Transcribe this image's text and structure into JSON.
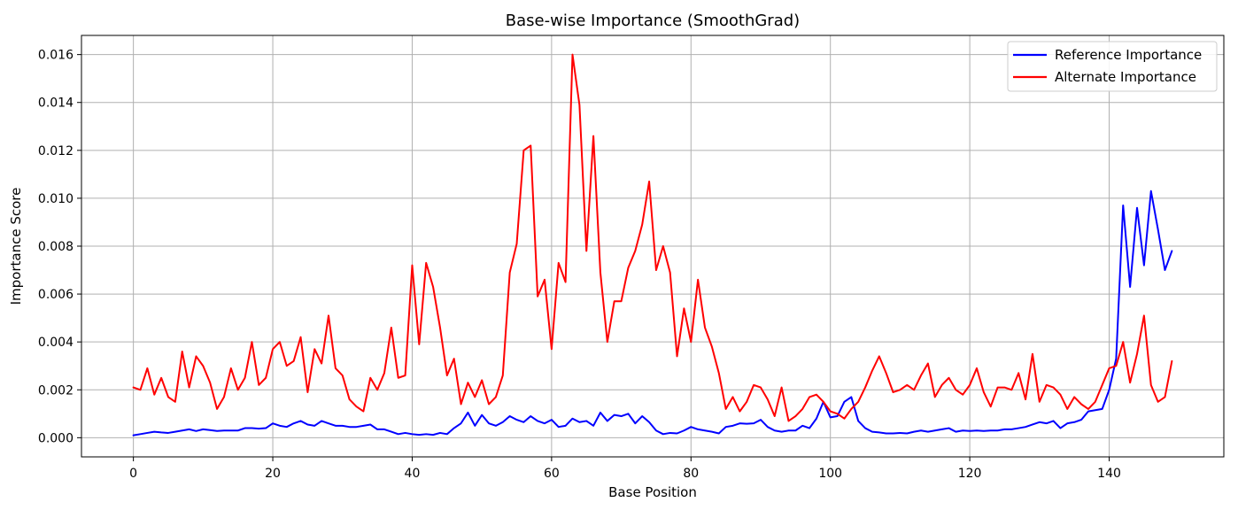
{
  "chart_data": {
    "type": "line",
    "title": "Base-wise Importance (SmoothGrad)",
    "xlabel": "Base Position",
    "ylabel": "Importance Score",
    "xlim": [
      -7.45,
      156.45
    ],
    "ylim": [
      -0.0008,
      0.0168
    ],
    "xticks": [
      0,
      20,
      40,
      60,
      80,
      100,
      120,
      140
    ],
    "yticks": [
      0.0,
      0.002,
      0.004,
      0.006,
      0.008,
      0.01,
      0.012,
      0.014,
      0.016
    ],
    "ytick_labels": [
      "0.000",
      "0.002",
      "0.004",
      "0.006",
      "0.008",
      "0.010",
      "0.012",
      "0.014",
      "0.016"
    ],
    "grid": true,
    "legend_position": "top-right",
    "series": [
      {
        "name": "Reference Importance",
        "color": "#0000ff",
        "values": [
          0.0001,
          0.00015,
          0.0002,
          0.00025,
          0.00022,
          0.0002,
          0.00025,
          0.0003,
          0.00035,
          0.00028,
          0.00035,
          0.00032,
          0.00028,
          0.0003,
          0.0003,
          0.0003,
          0.0004,
          0.0004,
          0.00038,
          0.0004,
          0.0006,
          0.0005,
          0.00045,
          0.0006,
          0.0007,
          0.00055,
          0.0005,
          0.0007,
          0.0006,
          0.0005,
          0.0005,
          0.00045,
          0.00045,
          0.0005,
          0.00055,
          0.00035,
          0.00035,
          0.00025,
          0.00015,
          0.0002,
          0.00015,
          0.00012,
          0.00015,
          0.00012,
          0.0002,
          0.00015,
          0.0004,
          0.0006,
          0.00105,
          0.0005,
          0.00095,
          0.0006,
          0.0005,
          0.00065,
          0.0009,
          0.00075,
          0.00065,
          0.0009,
          0.0007,
          0.0006,
          0.00075,
          0.00045,
          0.0005,
          0.0008,
          0.00065,
          0.0007,
          0.0005,
          0.00105,
          0.0007,
          0.00095,
          0.0009,
          0.001,
          0.0006,
          0.0009,
          0.00065,
          0.0003,
          0.00015,
          0.0002,
          0.00018,
          0.0003,
          0.00045,
          0.00035,
          0.0003,
          0.00025,
          0.00018,
          0.00045,
          0.0005,
          0.0006,
          0.00058,
          0.0006,
          0.00075,
          0.00045,
          0.0003,
          0.00025,
          0.0003,
          0.0003,
          0.0005,
          0.0004,
          0.0008,
          0.0015,
          0.00085,
          0.0009,
          0.0015,
          0.0017,
          0.0007,
          0.0004,
          0.00025,
          0.00022,
          0.00018,
          0.00018,
          0.0002,
          0.00018,
          0.00025,
          0.0003,
          0.00025,
          0.0003,
          0.00035,
          0.0004,
          0.00025,
          0.0003,
          0.00028,
          0.0003,
          0.00028,
          0.0003,
          0.0003,
          0.00035,
          0.00035,
          0.0004,
          0.00045,
          0.00055,
          0.00065,
          0.0006,
          0.0007,
          0.0004,
          0.0006,
          0.00065,
          0.00075,
          0.0011,
          0.00115,
          0.0012,
          0.002,
          0.0033,
          0.0097,
          0.0063,
          0.0096,
          0.0072,
          0.0103,
          0.0087,
          0.007,
          0.0078
        ]
      },
      {
        "name": "Alternate Importance",
        "color": "#ff0000",
        "values": [
          0.0021,
          0.002,
          0.0029,
          0.0018,
          0.0025,
          0.0017,
          0.0015,
          0.0036,
          0.0021,
          0.0034,
          0.003,
          0.0023,
          0.0012,
          0.0017,
          0.0029,
          0.002,
          0.0025,
          0.004,
          0.0022,
          0.0025,
          0.0037,
          0.004,
          0.003,
          0.0032,
          0.0042,
          0.0019,
          0.0037,
          0.0031,
          0.0051,
          0.0029,
          0.0026,
          0.0016,
          0.0013,
          0.0011,
          0.0025,
          0.002,
          0.0027,
          0.0046,
          0.0025,
          0.0026,
          0.0072,
          0.0039,
          0.0073,
          0.0063,
          0.0046,
          0.0026,
          0.0033,
          0.0014,
          0.0023,
          0.0017,
          0.0024,
          0.0014,
          0.0017,
          0.0026,
          0.0069,
          0.0081,
          0.012,
          0.0122,
          0.0059,
          0.0066,
          0.0037,
          0.0073,
          0.0065,
          0.016,
          0.0139,
          0.0078,
          0.0126,
          0.0069,
          0.004,
          0.0057,
          0.0057,
          0.0071,
          0.0078,
          0.0089,
          0.0107,
          0.007,
          0.008,
          0.0069,
          0.0034,
          0.0054,
          0.004,
          0.0066,
          0.0046,
          0.0038,
          0.0027,
          0.0012,
          0.0017,
          0.0011,
          0.0015,
          0.0022,
          0.0021,
          0.0016,
          0.0009,
          0.0021,
          0.0007,
          0.0009,
          0.0012,
          0.0017,
          0.0018,
          0.0015,
          0.0011,
          0.001,
          0.0008,
          0.0012,
          0.0015,
          0.0021,
          0.0028,
          0.0034,
          0.0027,
          0.0019,
          0.002,
          0.0022,
          0.002,
          0.0026,
          0.0031,
          0.0017,
          0.0022,
          0.0025,
          0.002,
          0.0018,
          0.0022,
          0.0029,
          0.0019,
          0.0013,
          0.0021,
          0.0021,
          0.002,
          0.0027,
          0.0016,
          0.0035,
          0.0015,
          0.0022,
          0.0021,
          0.0018,
          0.0012,
          0.0017,
          0.0014,
          0.0012,
          0.0015,
          0.0022,
          0.0029,
          0.003,
          0.004,
          0.0023,
          0.0035,
          0.0051,
          0.0022,
          0.0015,
          0.0017,
          0.0032
        ]
      }
    ]
  }
}
